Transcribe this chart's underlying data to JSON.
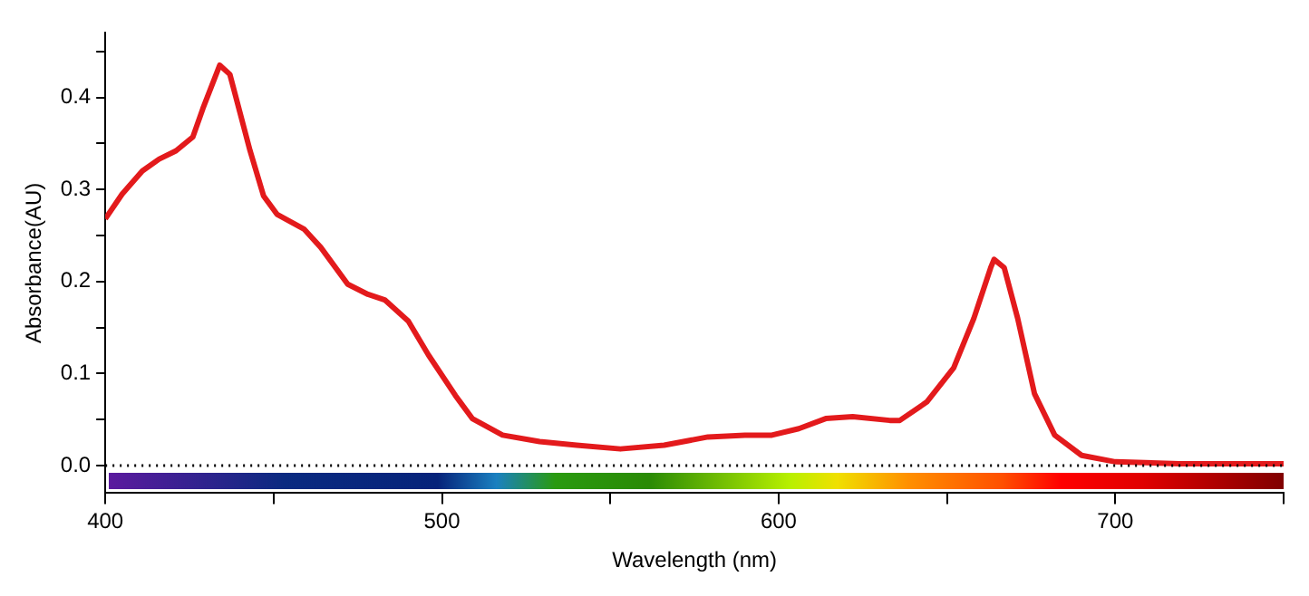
{
  "chart_data": {
    "type": "line",
    "xlabel": "Wavelength (nm)",
    "ylabel": "Absorbance(AU)",
    "xlim": [
      400,
      750
    ],
    "ylim": [
      -0.03,
      0.47
    ],
    "xticks": [
      400,
      {
        "value": 450,
        "label": null
      },
      500,
      {
        "value": 550,
        "label": null
      },
      600,
      {
        "value": 650,
        "label": null
      },
      700,
      {
        "value": 750,
        "label": null
      }
    ],
    "yticks": [
      {
        "value": 0,
        "label": "0.0"
      },
      {
        "value": 0.05,
        "label": null
      },
      0.1,
      {
        "value": 0.15,
        "label": null
      },
      0.2,
      {
        "value": 0.25,
        "label": null
      },
      0.3,
      {
        "value": 0.35,
        "label": null
      },
      0.4,
      {
        "value": 0.45,
        "label": null
      }
    ],
    "grid": false,
    "legend": false,
    "marker": "none",
    "line_style": "solid",
    "ref_lines": [
      {
        "axis": "y",
        "value": 0,
        "color": "#000000",
        "line_style": "dotted"
      }
    ],
    "series": [
      {
        "color": "#e31a1c",
        "x": [
          400,
          405,
          411,
          416,
          421,
          426,
          429,
          434,
          437,
          443,
          447,
          451,
          459,
          464,
          472,
          478,
          483,
          490,
          496,
          504,
          509,
          518,
          529,
          540,
          553,
          566,
          579,
          590,
          598,
          606,
          614,
          622,
          633,
          636,
          644,
          652,
          658,
          663,
          664,
          667,
          671,
          676,
          682,
          690,
          700,
          719,
          750
        ],
        "values": [
          0.268,
          0.295,
          0.32,
          0.333,
          0.342,
          0.357,
          0.388,
          0.435,
          0.425,
          0.342,
          0.293,
          0.273,
          0.257,
          0.237,
          0.197,
          0.186,
          0.18,
          0.157,
          0.12,
          0.076,
          0.051,
          0.033,
          0.026,
          0.022,
          0.018,
          0.022,
          0.031,
          0.033,
          0.033,
          0.04,
          0.051,
          0.053,
          0.049,
          0.049,
          0.069,
          0.106,
          0.16,
          0.215,
          0.224,
          0.215,
          0.16,
          0.078,
          0.033,
          0.011,
          0.004,
          0.002,
          0.002
        ]
      }
    ]
  }
}
